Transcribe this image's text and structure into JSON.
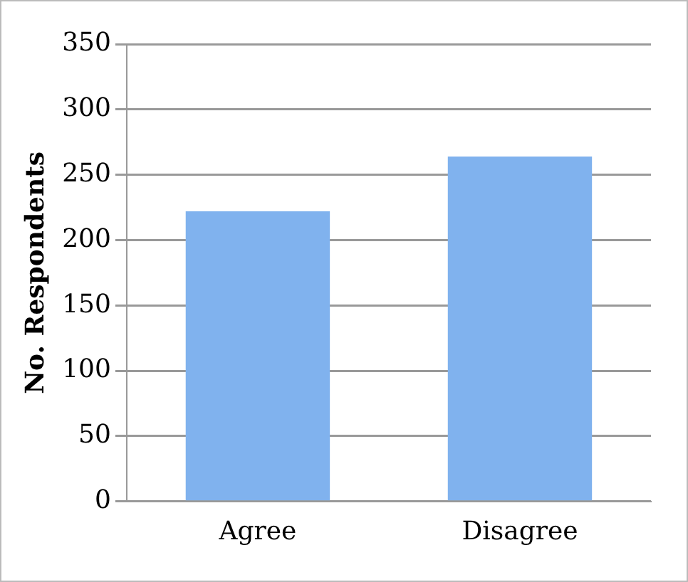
{
  "chart_data": {
    "type": "bar",
    "ylabel": "No. Respondents",
    "categories": [
      "Agree",
      "Disagree"
    ],
    "values": [
      222,
      264
    ],
    "color": "#80b2ee",
    "ylim": [
      0,
      350
    ],
    "yticks": [
      0,
      50,
      100,
      150,
      200,
      250,
      300,
      350
    ],
    "grid": "y",
    "legend": false
  }
}
